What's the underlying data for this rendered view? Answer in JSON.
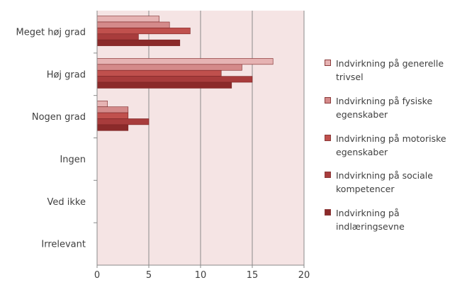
{
  "chart_data": {
    "type": "bar",
    "orientation": "horizontal",
    "categories": [
      "Meget høj grad",
      "Høj grad",
      "Nogen grad",
      "Ingen",
      "Ved ikke",
      "Irrelevant"
    ],
    "series": [
      {
        "name": "Indvirkning på generelle trivsel",
        "color": "#e6b3b3",
        "values": [
          6,
          17,
          1,
          0,
          0,
          0
        ]
      },
      {
        "name": "Indvirkning på fysiske egenskaber",
        "color": "#d48a8a",
        "values": [
          7,
          14,
          3,
          0,
          0,
          0
        ]
      },
      {
        "name": "Indvirkning på motoriske egenskaber",
        "color": "#c0504d",
        "values": [
          9,
          12,
          3,
          0,
          0,
          0
        ]
      },
      {
        "name": "Indvirkning på sociale kompetencer",
        "color": "#a83c3c",
        "values": [
          4,
          15,
          5,
          0,
          0,
          0
        ]
      },
      {
        "name": "Indvirkning på indlæringsevne",
        "color": "#8b2a2a",
        "values": [
          8,
          13,
          3,
          0,
          0,
          0
        ]
      }
    ],
    "x_ticks": [
      "0",
      "5",
      "10",
      "15",
      "20"
    ],
    "xlim": [
      0,
      20
    ],
    "grid": true,
    "legend_position": "right",
    "plot_background": "#f5e4e4"
  },
  "legend": {
    "labels": [
      "Indvirkning på generelle\ntrivsel",
      "Indvirkning på fysiske\negenskaber",
      "Indvirkning på motoriske\negenskaber",
      "Indvirkning på sociale\nkompetencer",
      "Indvirkning på\nindlæringsevne"
    ]
  }
}
